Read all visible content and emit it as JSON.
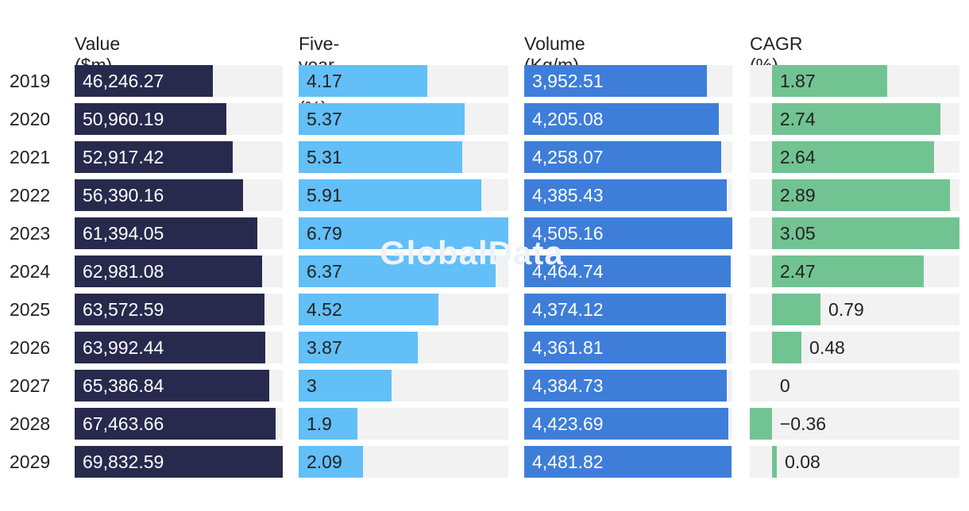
{
  "chart_data": {
    "type": "bar",
    "categories": [
      "2019",
      "2020",
      "2021",
      "2022",
      "2023",
      "2024",
      "2025",
      "2026",
      "2027",
      "2028",
      "2029"
    ],
    "series": [
      {
        "name": "Value ($m)",
        "color": "#272a4d",
        "text_color": "#ffffff",
        "min": 0,
        "max": 69832.59,
        "values": [
          46246.27,
          50960.19,
          52917.42,
          56390.16,
          61394.05,
          62981.08,
          63572.59,
          63992.44,
          65386.84,
          67463.66,
          69832.59
        ],
        "labels": [
          "46,246.27",
          "50,960.19",
          "52,917.42",
          "56,390.16",
          "61,394.05",
          "62,981.08",
          "63,572.59",
          "63,992.44",
          "65,386.84",
          "67,463.66",
          "69,832.59"
        ]
      },
      {
        "name": "Five-year CAGR (%)",
        "color": "#62bff7",
        "text_color": "#222222",
        "min": 0,
        "max": 6.79,
        "values": [
          4.17,
          5.37,
          5.31,
          5.91,
          6.79,
          6.37,
          4.52,
          3.87,
          3,
          1.9,
          2.09
        ],
        "labels": [
          "4.17",
          "5.37",
          "5.31",
          "5.91",
          "6.79",
          "6.37",
          "4.52",
          "3.87",
          "3",
          "1.9",
          "2.09"
        ]
      },
      {
        "name": "Volume (Kg/m)",
        "color": "#3e7ed9",
        "text_color": "#ffffff",
        "min": 0,
        "max": 4505.16,
        "values": [
          3952.51,
          4205.08,
          4258.07,
          4385.43,
          4505.16,
          4464.74,
          4374.12,
          4361.81,
          4384.73,
          4423.69,
          4481.82
        ],
        "labels": [
          "3,952.51",
          "4,205.08",
          "4,258.07",
          "4,385.43",
          "4,505.16",
          "4,464.74",
          "4,374.12",
          "4,361.81",
          "4,384.73",
          "4,423.69",
          "4,481.82"
        ]
      },
      {
        "name": "CAGR (%)",
        "color": "#72c392",
        "text_color": "#222222",
        "min": -0.36,
        "max": 3.05,
        "values": [
          1.87,
          2.74,
          2.64,
          2.89,
          3.05,
          2.47,
          0.79,
          0.48,
          0,
          -0.36,
          0.08
        ],
        "labels": [
          "1.87",
          "2.74",
          "2.64",
          "2.89",
          "3.05",
          "2.47",
          "0.79",
          "0.48",
          "0",
          "−0.36",
          "0.08"
        ]
      }
    ],
    "title": "",
    "xlabel": "",
    "ylabel": "",
    "background_color": "#f2f2f2"
  },
  "watermark": "GlobalData"
}
